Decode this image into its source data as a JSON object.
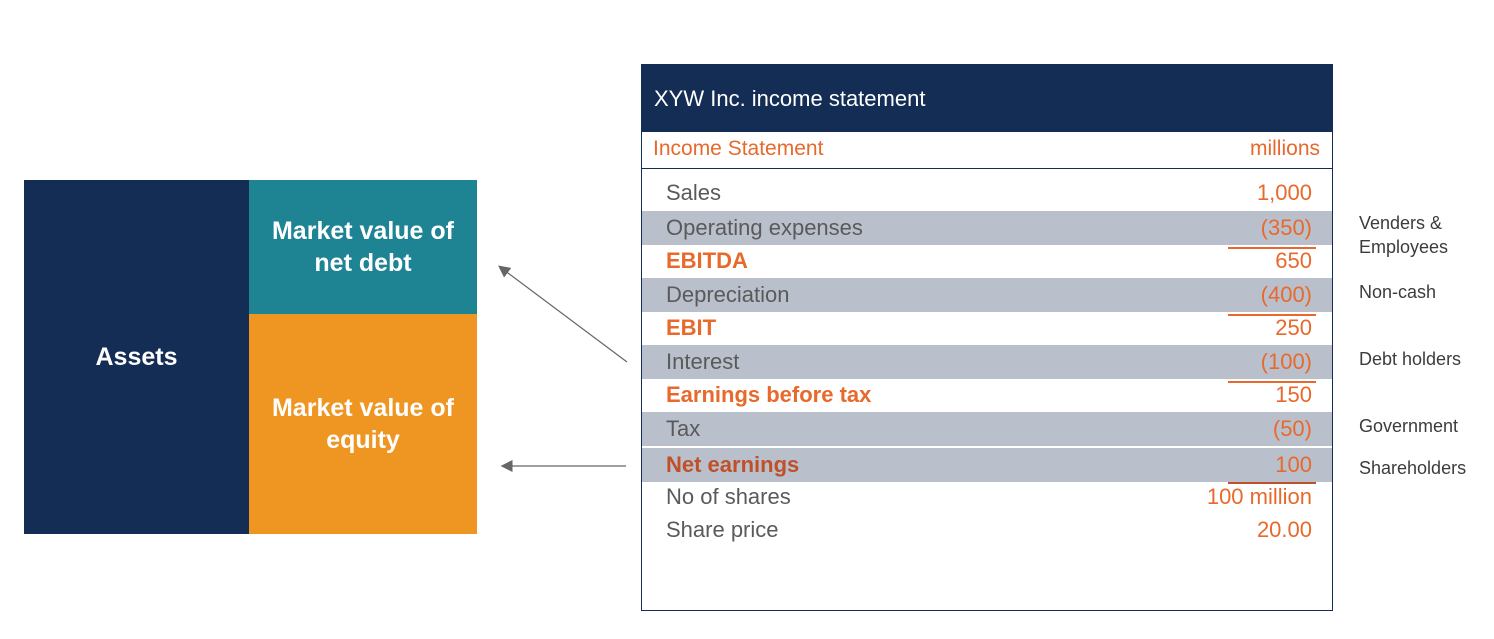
{
  "balance_sheet": {
    "assets_label": "Assets",
    "net_debt_label": "Market value of net debt",
    "equity_label": "Market value of equity",
    "colors": {
      "assets": "#142d55",
      "net_debt": "#1e8494",
      "equity": "#ee9522"
    }
  },
  "income_statement": {
    "title": "XYW Inc. income statement",
    "subheader_left": "Income Statement",
    "subheader_right": "millions",
    "rows": [
      {
        "label": "Sales",
        "value": "1,000"
      },
      {
        "label": "Operating expenses",
        "value": "(350)"
      },
      {
        "label": "EBITDA",
        "value": "650"
      },
      {
        "label": "Depreciation",
        "value": "(400)"
      },
      {
        "label": "EBIT",
        "value": "250"
      },
      {
        "label": "Interest",
        "value": "(100)"
      },
      {
        "label": "Earnings before tax",
        "value": "150"
      },
      {
        "label": "Tax",
        "value": "(50)"
      },
      {
        "label": "Net earnings",
        "value": "100"
      },
      {
        "label": "No of shares",
        "value": "100 million"
      },
      {
        "label": "Share price",
        "value": "20.00"
      }
    ],
    "colors": {
      "header": "#142d55",
      "accent": "#e8692c",
      "shade": "#b9c0cc"
    }
  },
  "side_notes": {
    "operating_expenses": "Venders & Employees",
    "depreciation": "Non-cash",
    "interest": "Debt holders",
    "tax": "Government",
    "net_earnings": "Shareholders"
  }
}
